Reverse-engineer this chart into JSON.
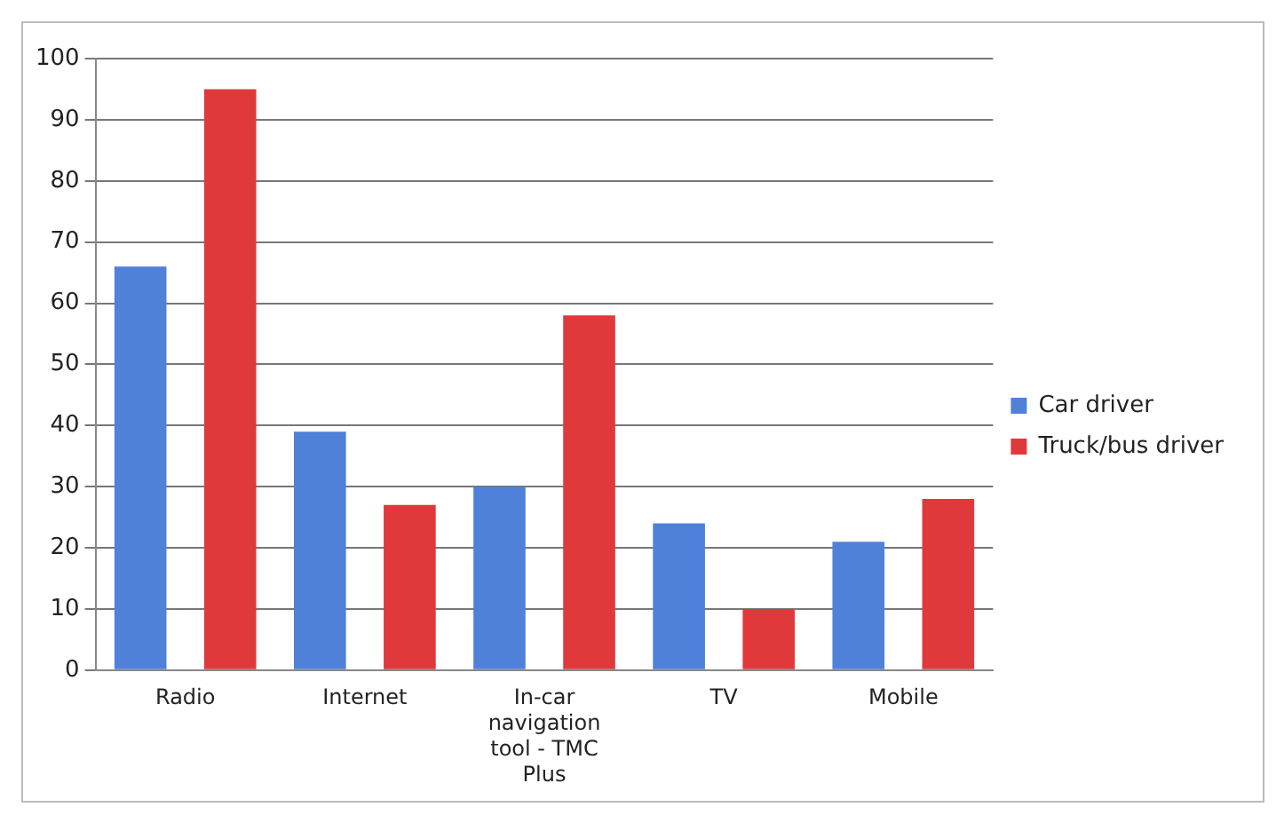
{
  "chart_data": {
    "type": "bar",
    "categories": [
      "Radio",
      "Internet",
      "In-car navigation tool - TMC Plus",
      "TV",
      "Mobile"
    ],
    "series": [
      {
        "name": "Car driver",
        "color": "#4f81d9",
        "values": [
          66,
          39,
          30,
          24,
          21
        ]
      },
      {
        "name": "Truck/bus driver",
        "color": "#e0393c",
        "values": [
          95,
          27,
          58,
          10,
          28
        ]
      }
    ],
    "ylim": [
      0,
      100
    ],
    "yticks": [
      0,
      10,
      20,
      30,
      40,
      50,
      60,
      70,
      80,
      90,
      100
    ],
    "grid": "y",
    "legend": "right"
  }
}
